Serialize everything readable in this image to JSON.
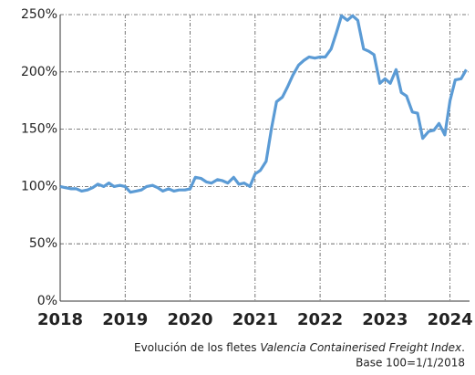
{
  "chart_data": {
    "type": "line",
    "caption": [
      "Evolución de los fletes ",
      "Valencia Containerised Freight Index",
      "."
    ],
    "note": "Base 100=1/1/2018",
    "x": [
      2018,
      2018.08,
      2018.17,
      2018.25,
      2018.33,
      2018.42,
      2018.5,
      2018.58,
      2018.67,
      2018.75,
      2018.83,
      2018.92,
      2019,
      2019.08,
      2019.17,
      2019.25,
      2019.33,
      2019.42,
      2019.5,
      2019.58,
      2019.67,
      2019.75,
      2019.83,
      2019.92,
      2020,
      2020.08,
      2020.17,
      2020.25,
      2020.33,
      2020.42,
      2020.5,
      2020.58,
      2020.67,
      2020.75,
      2020.83,
      2020.92,
      2021,
      2021.08,
      2021.17,
      2021.25,
      2021.33,
      2021.42,
      2021.5,
      2021.58,
      2021.67,
      2021.75,
      2021.83,
      2021.92,
      2022,
      2022.08,
      2022.17,
      2022.25,
      2022.33,
      2022.42,
      2022.5,
      2022.58,
      2022.67,
      2022.75,
      2022.83,
      2022.92,
      2023,
      2023.08,
      2023.17,
      2023.25,
      2023.33,
      2023.42,
      2023.5,
      2023.58,
      2023.67,
      2023.75,
      2023.83,
      2023.92,
      2024,
      2024.08,
      2024.17,
      2024.25
    ],
    "series": [
      {
        "name": "Valencia Containerised Freight Index",
        "color": "#5b9bd5",
        "values": [
          100,
          99,
          98,
          98,
          96,
          97,
          99,
          102,
          100,
          103,
          100,
          101,
          100,
          95,
          96,
          97,
          100,
          101,
          99,
          96,
          98,
          96,
          97,
          97,
          98,
          108,
          107,
          104,
          103,
          106,
          105,
          103,
          108,
          102,
          103,
          100,
          111,
          114,
          122,
          150,
          174,
          178,
          187,
          197,
          206,
          210,
          213,
          212,
          213,
          213,
          220,
          234,
          249,
          245,
          249,
          245,
          220,
          218,
          215,
          190,
          194,
          190,
          202,
          182,
          179,
          165,
          164,
          142,
          148,
          149,
          155,
          145,
          175,
          193,
          194,
          202
        ]
      }
    ],
    "xlim": [
      2018,
      2024.3
    ],
    "xticks": [
      2018,
      2019,
      2020,
      2021,
      2022,
      2023,
      2024
    ],
    "ylim": [
      0,
      250
    ],
    "yticks": [
      {
        "value": 0,
        "label": "0%"
      },
      {
        "value": 50,
        "label": "50%"
      },
      {
        "value": 100,
        "label": "100%"
      },
      {
        "value": 150,
        "label": "150%"
      },
      {
        "value": 200,
        "label": "200%"
      },
      {
        "value": 250,
        "label": "250%"
      }
    ],
    "grid": true
  }
}
